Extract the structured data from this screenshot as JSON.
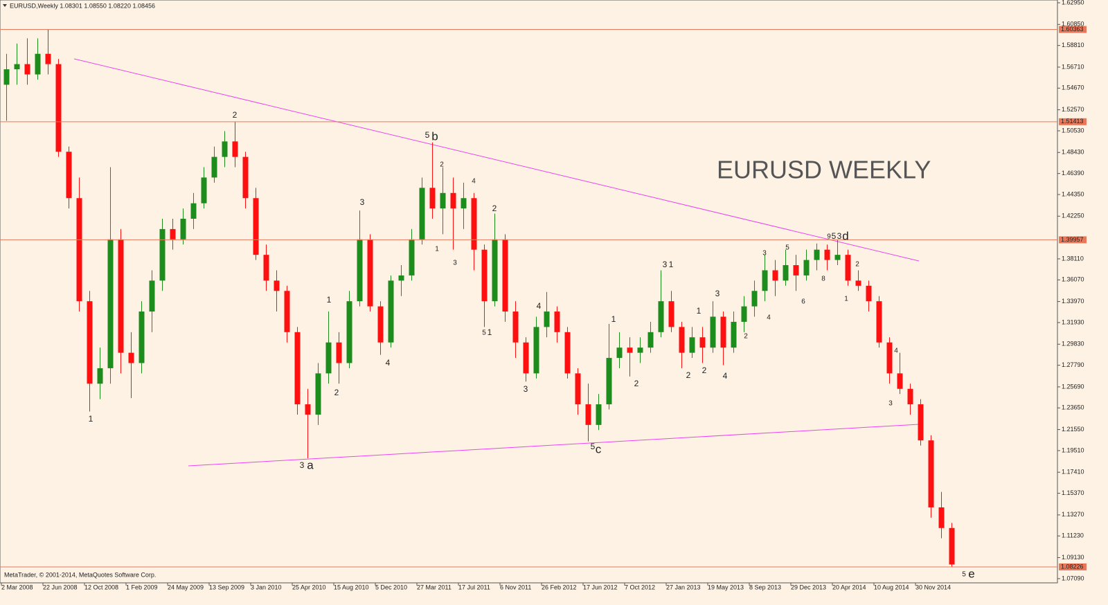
{
  "chart_data": {
    "type": "candlestick",
    "title": "EURUSD,Weekly  1.08301 1.08550 1.08220 1.08456",
    "watermark": "EURUSD WEEKLY",
    "footer": "MetaTrader, © 2001-2014, MetaQuotes Software Corp.",
    "up_color": "#1c8c1c",
    "down_color": "#ff1010",
    "level_color": "#e8785a",
    "ylim": [
      1.0668,
      1.6322
    ],
    "yticks": [
      {
        "value": 1.6295,
        "label": "1.62950"
      },
      {
        "value": 1.6085,
        "label": "1.60850"
      },
      {
        "value": 1.5881,
        "label": "1.58810"
      },
      {
        "value": 1.5671,
        "label": "1.56710"
      },
      {
        "value": 1.5467,
        "label": "1.54670"
      },
      {
        "value": 1.5257,
        "label": "1.52570"
      },
      {
        "value": 1.5053,
        "label": "1.50530"
      },
      {
        "value": 1.4843,
        "label": "1.48430"
      },
      {
        "value": 1.4639,
        "label": "1.46390"
      },
      {
        "value": 1.4435,
        "label": "1.44350"
      },
      {
        "value": 1.4225,
        "label": "1.42250"
      },
      {
        "value": 1.3811,
        "label": "1.38110"
      },
      {
        "value": 1.3607,
        "label": "1.36070"
      },
      {
        "value": 1.3397,
        "label": "1.33970"
      },
      {
        "value": 1.3193,
        "label": "1.31930"
      },
      {
        "value": 1.2983,
        "label": "1.29830"
      },
      {
        "value": 1.2779,
        "label": "1.27790"
      },
      {
        "value": 1.2569,
        "label": "1.25690"
      },
      {
        "value": 1.2365,
        "label": "1.23650"
      },
      {
        "value": 1.2155,
        "label": "1.21550"
      },
      {
        "value": 1.1951,
        "label": "1.19510"
      },
      {
        "value": 1.1741,
        "label": "1.17410"
      },
      {
        "value": 1.1537,
        "label": "1.15370"
      },
      {
        "value": 1.1327,
        "label": "1.13270"
      },
      {
        "value": 1.1123,
        "label": "1.11230"
      },
      {
        "value": 1.0913,
        "label": "1.09130"
      },
      {
        "value": 1.0709,
        "label": "1.07090"
      }
    ],
    "levels": [
      1.60363,
      1.51413,
      1.39957,
      1.08226
    ],
    "categories": [
      "2 Mar 2008",
      null,
      null,
      null,
      "22 Jun 2008",
      null,
      null,
      null,
      "12 Oct 2008",
      null,
      null,
      null,
      "1 Feb 2009",
      null,
      null,
      null,
      "24 May 2009",
      null,
      null,
      null,
      "13 Sep 2009",
      null,
      null,
      null,
      "3 Jan 2010",
      null,
      null,
      null,
      "25 Apr 2010",
      null,
      null,
      null,
      "15 Aug 2010",
      null,
      null,
      null,
      "5 Dec 2010",
      null,
      null,
      null,
      "27 Mar 2011",
      null,
      null,
      null,
      "17 Jul 2011",
      null,
      null,
      null,
      "6 Nov 2011",
      null,
      null,
      null,
      "26 Feb 2012",
      null,
      null,
      null,
      "17 Jun 2012",
      null,
      null,
      null,
      "7 Oct 2012",
      null,
      null,
      null,
      "27 Jan 2013",
      null,
      null,
      null,
      "19 May 2013",
      null,
      null,
      null,
      "8 Sep 2013",
      null,
      null,
      null,
      "29 Dec 2013",
      null,
      null,
      null,
      "20 Apr 2014",
      null,
      null,
      null,
      "10 Aug 2014",
      null,
      null,
      null,
      "30 Nov 2014",
      null,
      null,
      null
    ],
    "open": [
      1.55,
      1.565,
      1.57,
      1.56,
      1.58,
      1.57,
      1.485,
      1.44,
      1.34,
      1.26,
      1.275,
      1.4,
      1.29,
      1.28,
      1.33,
      1.36,
      1.41,
      1.4,
      1.42,
      1.435,
      1.46,
      1.48,
      1.495,
      1.48,
      1.44,
      1.385,
      1.36,
      1.35,
      1.31,
      1.24,
      1.23,
      1.27,
      1.3,
      1.28,
      1.34,
      1.4,
      1.335,
      1.3,
      1.36,
      1.365,
      1.4,
      1.45,
      1.43,
      1.445,
      1.43,
      1.44,
      1.39,
      1.34,
      1.4,
      1.33,
      1.3,
      1.27,
      1.315,
      1.33,
      1.31,
      1.27,
      1.24,
      1.22,
      1.24,
      1.285,
      1.295,
      1.29,
      1.295,
      1.31,
      1.34,
      1.315,
      1.29,
      1.305,
      1.295,
      1.325,
      1.295,
      1.32,
      1.335,
      1.35,
      1.37,
      1.36,
      1.375,
      1.365,
      1.38,
      1.39,
      1.38,
      1.385,
      1.36,
      1.355,
      1.34,
      1.3,
      1.27,
      1.255,
      1.24,
      1.205,
      1.14,
      1.12
    ],
    "high": [
      1.58,
      1.59,
      1.595,
      1.595,
      1.6036,
      1.575,
      1.49,
      1.46,
      1.35,
      1.295,
      1.47,
      1.41,
      1.31,
      1.34,
      1.37,
      1.42,
      1.42,
      1.43,
      1.445,
      1.47,
      1.49,
      1.505,
      1.5141,
      1.485,
      1.45,
      1.395,
      1.37,
      1.355,
      1.315,
      1.255,
      1.28,
      1.33,
      1.31,
      1.35,
      1.428,
      1.405,
      1.34,
      1.365,
      1.375,
      1.41,
      1.46,
      1.494,
      1.47,
      1.46,
      1.455,
      1.445,
      1.395,
      1.425,
      1.405,
      1.34,
      1.305,
      1.325,
      1.349,
      1.335,
      1.315,
      1.275,
      1.26,
      1.25,
      1.318,
      1.31,
      1.305,
      1.305,
      1.32,
      1.37,
      1.35,
      1.32,
      1.315,
      1.315,
      1.34,
      1.33,
      1.33,
      1.345,
      1.36,
      1.385,
      1.38,
      1.39,
      1.385,
      1.39,
      1.396,
      1.395,
      1.3995,
      1.39,
      1.37,
      1.36,
      1.345,
      1.305,
      1.29,
      1.26,
      1.245,
      1.21,
      1.155,
      1.125
    ],
    "low": [
      1.515,
      1.55,
      1.55,
      1.555,
      1.56,
      1.48,
      1.43,
      1.33,
      1.233,
      1.245,
      1.26,
      1.27,
      1.246,
      1.27,
      1.31,
      1.35,
      1.39,
      1.395,
      1.41,
      1.43,
      1.455,
      1.47,
      1.47,
      1.43,
      1.38,
      1.35,
      1.33,
      1.3,
      1.23,
      1.1876,
      1.22,
      1.26,
      1.26,
      1.275,
      1.335,
      1.33,
      1.288,
      1.295,
      1.345,
      1.36,
      1.395,
      1.42,
      1.405,
      1.39,
      1.41,
      1.37,
      1.315,
      1.335,
      1.32,
      1.285,
      1.262,
      1.265,
      1.305,
      1.3,
      1.265,
      1.23,
      1.204,
      1.215,
      1.235,
      1.275,
      1.267,
      1.28,
      1.29,
      1.305,
      1.31,
      1.275,
      1.285,
      1.28,
      1.29,
      1.278,
      1.29,
      1.31,
      1.325,
      1.34,
      1.345,
      1.355,
      1.35,
      1.36,
      1.37,
      1.37,
      1.375,
      1.355,
      1.35,
      1.33,
      1.295,
      1.26,
      1.25,
      1.23,
      1.2,
      1.13,
      1.11,
      1.0823
    ],
    "close": [
      1.565,
      1.57,
      1.56,
      1.58,
      1.57,
      1.485,
      1.44,
      1.34,
      1.26,
      1.275,
      1.4,
      1.29,
      1.28,
      1.33,
      1.36,
      1.41,
      1.4,
      1.42,
      1.435,
      1.46,
      1.48,
      1.495,
      1.48,
      1.44,
      1.385,
      1.36,
      1.35,
      1.31,
      1.24,
      1.23,
      1.27,
      1.3,
      1.28,
      1.34,
      1.4,
      1.335,
      1.3,
      1.36,
      1.365,
      1.4,
      1.45,
      1.43,
      1.445,
      1.43,
      1.44,
      1.39,
      1.34,
      1.4,
      1.33,
      1.3,
      1.27,
      1.315,
      1.33,
      1.31,
      1.27,
      1.24,
      1.22,
      1.24,
      1.285,
      1.295,
      1.29,
      1.295,
      1.31,
      1.34,
      1.315,
      1.29,
      1.305,
      1.295,
      1.325,
      1.295,
      1.32,
      1.335,
      1.35,
      1.37,
      1.36,
      1.375,
      1.365,
      1.38,
      1.39,
      1.38,
      1.385,
      1.36,
      1.355,
      1.34,
      1.3,
      1.27,
      1.255,
      1.24,
      1.205,
      1.14,
      1.12,
      1.0846
    ],
    "annotations": [
      {
        "text": "1",
        "color": "#ee44ee"
      },
      {
        "text": "2",
        "color": "#ee44ee"
      },
      {
        "text": "3",
        "color": "#ee44ee"
      },
      {
        "text": "a",
        "color": "#ee0000"
      },
      {
        "text": "5",
        "color": "#222222"
      },
      {
        "text": "b",
        "color": "#ee0000"
      },
      {
        "text": "2",
        "color": "#2e8b2e"
      },
      {
        "text": "4",
        "color": "#2e8b2e"
      },
      {
        "text": "1",
        "color": "#2e8b2e"
      },
      {
        "text": "3",
        "color": "#2e8b2e"
      },
      {
        "text": "2",
        "color": "#ee2222"
      },
      {
        "text": "5",
        "color": "#2e8b2e"
      },
      {
        "text": "1",
        "color": "#ee2222"
      },
      {
        "text": "3",
        "color": "#222222"
      },
      {
        "text": "1",
        "color": "#222222"
      },
      {
        "text": "2",
        "color": "#222222"
      },
      {
        "text": "4",
        "color": "#222222"
      },
      {
        "text": "4",
        "color": "#ee2222"
      },
      {
        "text": "3",
        "color": "#ee2222"
      },
      {
        "text": "5",
        "color": "#ee2222"
      },
      {
        "text": "c",
        "color": "#ee0000"
      },
      {
        "text": "1",
        "color": "#222222"
      },
      {
        "text": "2",
        "color": "#222222"
      },
      {
        "text": "3",
        "color": "#222222"
      },
      {
        "text": "1",
        "color": "#2233cc"
      },
      {
        "text": "2",
        "color": "#2233cc"
      },
      {
        "text": "1",
        "color": "#222222"
      },
      {
        "text": "2",
        "color": "#222222"
      },
      {
        "text": "3",
        "color": "#222222"
      },
      {
        "text": "4",
        "color": "#222222"
      },
      {
        "text": "3",
        "color": "#2e8b2e"
      },
      {
        "text": "5",
        "color": "#2e8b2e"
      },
      {
        "text": "4",
        "color": "#2e8b2e"
      },
      {
        "text": "2",
        "color": "#2e8b2e"
      },
      {
        "text": "6",
        "color": "#2e8b2e"
      },
      {
        "text": "8",
        "color": "#2e8b2e"
      },
      {
        "text": "9",
        "color": "#2e8b2e"
      },
      {
        "text": "5",
        "color": "#2233cc"
      },
      {
        "text": "3",
        "color": "#2233cc"
      },
      {
        "text": "d",
        "color": "#ee0000"
      },
      {
        "text": "2",
        "color": "#2e8b2e"
      },
      {
        "text": "1",
        "color": "#2e8b2e"
      },
      {
        "text": "4",
        "color": "#2e8b2e"
      },
      {
        "text": "3",
        "color": "#2e8b2e"
      },
      {
        "text": "5",
        "color": "#2e8b2e"
      },
      {
        "text": "e",
        "color": "#ee0000"
      }
    ]
  }
}
